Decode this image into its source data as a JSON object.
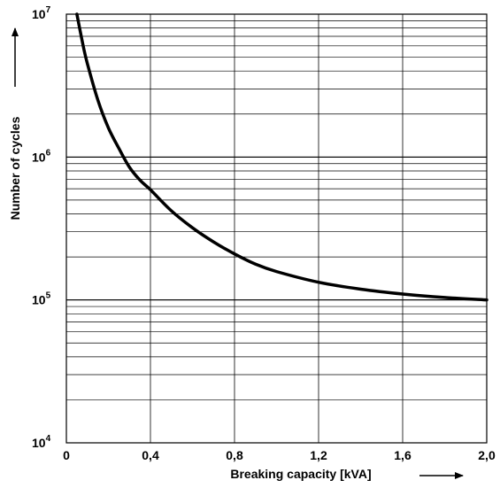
{
  "chart_data": {
    "type": "line",
    "title": "",
    "xlabel": "Breaking capacity [kVA]",
    "ylabel": "Number of cycles",
    "x_scale": "linear",
    "y_scale": "log",
    "xlim": [
      0,
      2.0
    ],
    "ylim": [
      10000,
      10000000
    ],
    "x_ticks": [
      0,
      0.4,
      0.8,
      1.2,
      1.6,
      2.0
    ],
    "x_tick_labels": [
      "0",
      "0,4",
      "0,8",
      "1,2",
      "1,6",
      "2,0"
    ],
    "y_ticks": [
      {
        "value": 10000,
        "base": "10",
        "exp": "4"
      },
      {
        "value": 100000,
        "base": "10",
        "exp": "5"
      },
      {
        "value": 1000000,
        "base": "10",
        "exp": "6"
      },
      {
        "value": 10000000,
        "base": "10",
        "exp": "7"
      }
    ],
    "grid": true,
    "legend": "none",
    "line_color": "#000000",
    "series": [
      {
        "x": [
          0.05,
          0.08,
          0.1,
          0.15,
          0.2,
          0.25,
          0.3,
          0.35,
          0.4,
          0.5,
          0.6,
          0.7,
          0.8,
          0.9,
          1.0,
          1.2,
          1.4,
          1.6,
          1.8,
          2.0
        ],
        "values": [
          10000000,
          6000000,
          4500000,
          2500000,
          1600000,
          1150000,
          850000,
          690000,
          590000,
          420000,
          320000,
          255000,
          210000,
          178000,
          158000,
          133000,
          119000,
          110000,
          104000,
          100000
        ]
      }
    ]
  }
}
